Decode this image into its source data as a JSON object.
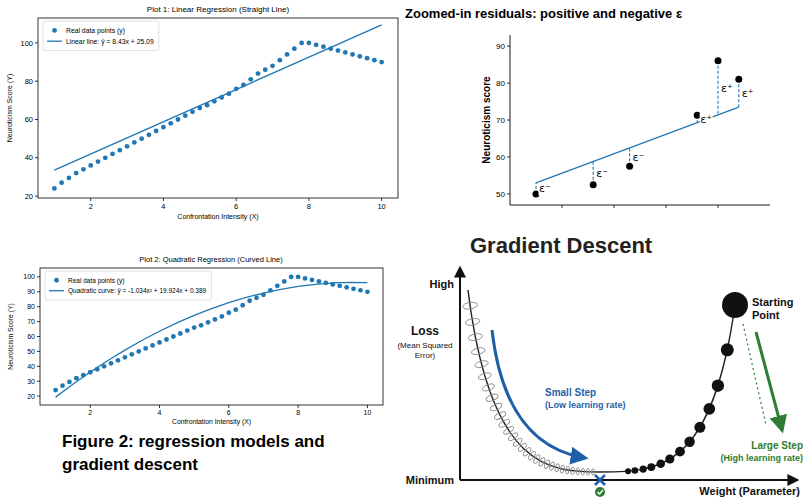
{
  "chart_data": [
    {
      "type": "scatter",
      "title": "Plot 1: Linear Regression (Straight Line)",
      "x_label": "Confrontation Intensity (X)",
      "y_label": "Neuroticism Score (Y)",
      "xlim": [
        0.55,
        10.45
      ],
      "ylim": [
        19,
        113
      ],
      "xticks": [
        2,
        4,
        6,
        8,
        10
      ],
      "yticks": [
        20,
        40,
        60,
        80,
        100
      ],
      "grid": false,
      "legend": "upper left",
      "series": [
        {
          "name": "Real data points (y)",
          "type": "scatter",
          "marker": "circle",
          "color": "#1f77b4",
          "x": [
            1,
            1.2,
            1.4,
            1.6,
            1.8,
            2,
            2.2,
            2.4,
            2.6,
            2.8,
            3,
            3.2,
            3.4,
            3.6,
            3.8,
            4,
            4.2,
            4.4,
            4.6,
            4.8,
            5,
            5.2,
            5.4,
            5.6,
            5.8,
            6,
            6.2,
            6.4,
            6.6,
            6.8,
            7,
            7.2,
            7.4,
            7.6,
            7.8,
            8,
            8.2,
            8.4,
            8.6,
            8.8,
            9,
            9.2,
            9.4,
            9.6,
            9.8,
            10
          ],
          "values": [
            24,
            27,
            29.5,
            32,
            34,
            36,
            38,
            40,
            42,
            44,
            46,
            48,
            50,
            52,
            54,
            56,
            58,
            60,
            62,
            64,
            66,
            67.5,
            69.5,
            71.5,
            73.5,
            76,
            78,
            81,
            84,
            86,
            88,
            91,
            94,
            97,
            100,
            100,
            99,
            98,
            97,
            96,
            95,
            94,
            93,
            92,
            91,
            90
          ]
        },
        {
          "name": "Linear line: ŷ = 8.43x + 25.09",
          "type": "line",
          "line_style": "solid",
          "color": "#1f77b4",
          "x": [
            1,
            10
          ],
          "values": [
            33.52,
            109.39
          ]
        }
      ]
    },
    {
      "type": "scatter",
      "title": "Plot 2: Quadratic Regression (Curved Line)",
      "x_label": "Confrontation Intensity (X)",
      "y_label": "Neuroticism Score (Y)",
      "xlim": [
        0.55,
        10.45
      ],
      "ylim": [
        14,
        106
      ],
      "xticks": [
        2,
        4,
        6,
        8,
        10
      ],
      "yticks": [
        20,
        30,
        40,
        50,
        60,
        70,
        80,
        90,
        100
      ],
      "grid": false,
      "legend": "upper left",
      "series": [
        {
          "name": "Real data points (y)",
          "type": "scatter",
          "marker": "circle",
          "color": "#1f77b4",
          "x": [
            1,
            1.2,
            1.4,
            1.6,
            1.8,
            2,
            2.2,
            2.4,
            2.6,
            2.8,
            3,
            3.2,
            3.4,
            3.6,
            3.8,
            4,
            4.2,
            4.4,
            4.6,
            4.8,
            5,
            5.2,
            5.4,
            5.6,
            5.8,
            6,
            6.2,
            6.4,
            6.6,
            6.8,
            7,
            7.2,
            7.4,
            7.6,
            7.8,
            8,
            8.2,
            8.4,
            8.6,
            8.8,
            9,
            9.2,
            9.4,
            9.6,
            9.8,
            10
          ],
          "values": [
            24,
            27,
            29.5,
            32,
            34,
            36,
            38,
            40,
            42,
            44,
            46,
            48,
            50,
            52,
            54,
            56,
            58,
            60,
            62,
            64,
            66,
            67.5,
            69.5,
            71.5,
            73.5,
            76,
            78,
            81,
            84,
            86,
            88,
            91,
            94,
            97,
            100,
            100,
            99,
            98,
            97,
            96,
            95,
            94,
            93,
            92,
            91,
            90
          ]
        },
        {
          "name": "Quadratic curve: ŷ = -1.034x² + 19.924x + 0.389",
          "type": "line",
          "line_style": "solid",
          "color": "#1f77b4",
          "x": [
            1,
            1.5,
            2,
            2.5,
            3,
            3.5,
            4,
            4.5,
            5,
            5.5,
            6,
            6.5,
            7,
            7.5,
            8,
            8.5,
            9,
            9.5,
            10
          ],
          "values": [
            19.28,
            27.95,
            36.1,
            43.74,
            50.86,
            57.46,
            63.54,
            69.11,
            74.16,
            78.69,
            82.71,
            86.21,
            89.19,
            91.66,
            93.61,
            95.04,
            95.95,
            96.35,
            96.23
          ]
        }
      ]
    },
    {
      "type": "scatter",
      "title": "Zoomed-in residuals: positive and negative ε",
      "y_label": "Neuroticism score",
      "xlim": [
        0,
        1
      ],
      "ylim": [
        47,
        93
      ],
      "xticks": [
        0.2,
        0.4,
        0.6,
        0.8
      ],
      "yticks": [
        50,
        60,
        70,
        80,
        90
      ],
      "tick_labels": "y",
      "grid": false,
      "series": [
        {
          "type": "scatter",
          "marker": "circle",
          "color": "#000000",
          "x": [
            0.1,
            0.32,
            0.46,
            0.72,
            0.8,
            0.88
          ],
          "values": [
            50,
            52.5,
            57.5,
            71.3,
            86,
            81
          ],
          "fitted": [
            53,
            58.8,
            62.5,
            69.3,
            71.4,
            73.5
          ],
          "residual_labels": [
            "ε⁻",
            "ε⁻",
            "ε⁻",
            "ε⁺",
            "ε⁺",
            "ε⁺"
          ]
        },
        {
          "type": "line",
          "line_style": "solid",
          "color": "#1f77b4",
          "x": [
            0.1,
            0.88
          ],
          "values": [
            53,
            73.5
          ]
        }
      ]
    }
  ],
  "diagram": {
    "title": "Gradient Descent",
    "y_axis": {
      "top_label": "High",
      "bottom_label": "Minimum",
      "title": "Loss",
      "subtitle": "(Mean Squared Error)"
    },
    "x_axis": {
      "title": "Weight (Parameter)"
    },
    "start": {
      "label": "Starting Point"
    },
    "small_step": {
      "label": "Small Step",
      "note": "(Low learning rate)",
      "color": "#1f5fa8"
    },
    "large_step": {
      "label": "Large Step",
      "note": "(High learning rate)",
      "color": "#2e7d32"
    }
  },
  "caption": "Figure 2: regression models and gradient descent"
}
